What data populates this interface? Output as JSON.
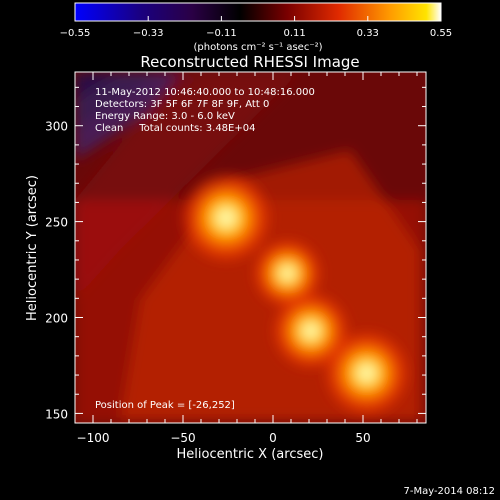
{
  "chart_data": {
    "type": "heatmap",
    "title": "Reconstructed RHESSI Image",
    "xlabel": "Heliocentric X (arcsec)",
    "ylabel": "Heliocentric Y (arcsec)",
    "xlim": [
      -110,
      85
    ],
    "ylim": [
      145,
      328
    ],
    "x_ticks": [
      -100,
      -50,
      0,
      50
    ],
    "x_tick_labels": [
      "−100",
      "−50",
      "0",
      "50"
    ],
    "y_ticks": [
      150,
      200,
      250,
      300
    ],
    "y_tick_labels": [
      "150",
      "200",
      "250",
      "300"
    ],
    "colorbar": {
      "min": -0.55,
      "max": 0.55,
      "ticks": [
        -0.55,
        -0.33,
        -0.11,
        0.11,
        0.33,
        0.55
      ],
      "tick_labels": [
        "−0.55",
        "−0.33",
        "−0.11",
        "0.11",
        "0.33",
        "0.55"
      ],
      "units_label": "(photons cm⁻² s⁻¹ asec⁻²)",
      "colormap": [
        "#0000ff",
        "#2a0060",
        "#000000",
        "#5a0000",
        "#c81400",
        "#ff7800",
        "#ffe000",
        "#ffffff"
      ]
    },
    "annotations": [
      "11-May-2012 10:46:40.000 to 10:48:16.000",
      "Detectors: 3F 5F 6F 7F 8F 9F, Att 0",
      "Energy Range: 3.0 - 6.0 keV",
      "Clean     Total counts: 3.48E+04"
    ],
    "peak_label": "Position of Peak = [-26,252]",
    "sources": [
      {
        "x": -26,
        "y": 252,
        "value": 0.55
      },
      {
        "x": 8,
        "y": 223,
        "value": 0.42
      },
      {
        "x": 21,
        "y": 193,
        "value": 0.47
      },
      {
        "x": 52,
        "y": 171,
        "value": 0.52
      }
    ],
    "grid": false
  },
  "footer": {
    "date": "7-May-2014 08:12"
  }
}
